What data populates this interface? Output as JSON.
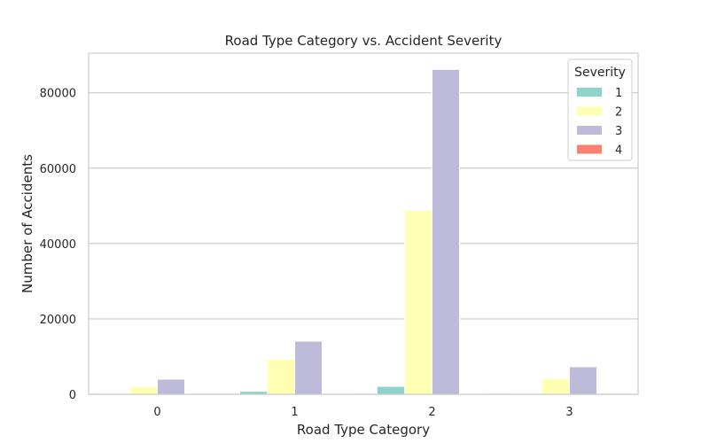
{
  "chart_data": {
    "type": "bar",
    "title": "Road Type Category vs. Accident Severity",
    "xlabel": "Road Type Category",
    "ylabel": "Number of Accidents",
    "categories": [
      "0",
      "1",
      "2",
      "3"
    ],
    "ylim": [
      0,
      90500
    ],
    "yticks": [
      0,
      20000,
      40000,
      60000,
      80000
    ],
    "ytick_labels": [
      "0",
      "20000",
      "40000",
      "60000",
      "80000"
    ],
    "grid": "horizontal",
    "legend": {
      "title": "Severity",
      "placement": "top-right"
    },
    "series": [
      {
        "name": "1",
        "color": "#8dd3c7",
        "values": [
          30,
          800,
          2100,
          10
        ]
      },
      {
        "name": "2",
        "color": "#ffffb3",
        "values": [
          2000,
          9300,
          48800,
          4200
        ]
      },
      {
        "name": "3",
        "color": "#bebada",
        "values": [
          4000,
          14100,
          86200,
          7300
        ]
      },
      {
        "name": "4",
        "color": "#fb8072",
        "values": [
          5,
          40,
          150,
          5
        ]
      }
    ]
  }
}
